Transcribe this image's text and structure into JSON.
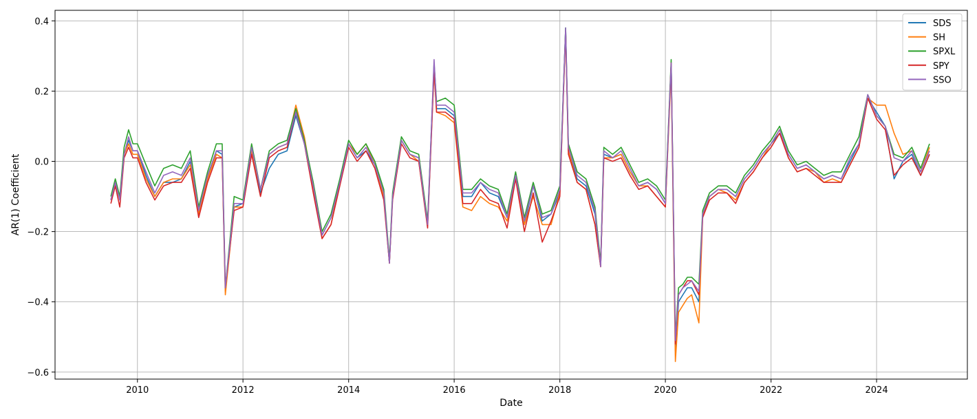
{
  "chart_data": {
    "type": "line",
    "title": "",
    "xlabel": "Date",
    "ylabel": "AR(1) Coefficient",
    "xlim": [
      "2008-06-10",
      "2025-09-20"
    ],
    "ylim": [
      -0.62,
      0.43
    ],
    "x_ticks": [
      "2010",
      "2012",
      "2014",
      "2016",
      "2018",
      "2020",
      "2022",
      "2024"
    ],
    "y_ticks": [
      -0.6,
      -0.4,
      -0.2,
      0.0,
      0.2,
      0.4
    ],
    "y_tick_labels": [
      "−0.6",
      "−0.4",
      "−0.2",
      "0.0",
      "0.2",
      "0.4"
    ],
    "grid": true,
    "legend_position": "top-right",
    "x": [
      "2009-07-01",
      "2009-08-01",
      "2009-09-01",
      "2009-10-01",
      "2009-11-01",
      "2009-12-01",
      "2010-01-01",
      "2010-03-01",
      "2010-05-01",
      "2010-07-01",
      "2010-09-01",
      "2010-11-01",
      "2011-01-01",
      "2011-03-01",
      "2011-05-01",
      "2011-07-01",
      "2011-08-10",
      "2011-09-01",
      "2011-11-01",
      "2012-01-01",
      "2012-03-01",
      "2012-05-01",
      "2012-07-01",
      "2012-09-01",
      "2012-11-01",
      "2013-01-01",
      "2013-03-01",
      "2013-05-01",
      "2013-07-01",
      "2013-09-01",
      "2013-11-01",
      "2014-01-01",
      "2014-03-01",
      "2014-05-01",
      "2014-07-01",
      "2014-09-01",
      "2014-10-10",
      "2014-11-01",
      "2015-01-01",
      "2015-03-01",
      "2015-05-01",
      "2015-07-01",
      "2015-08-15",
      "2015-09-01",
      "2015-11-01",
      "2016-01-01",
      "2016-03-01",
      "2016-05-01",
      "2016-07-01",
      "2016-09-01",
      "2016-11-01",
      "2017-01-01",
      "2017-03-01",
      "2017-05-01",
      "2017-07-01",
      "2017-09-01",
      "2017-11-01",
      "2018-01-01",
      "2018-02-10",
      "2018-03-01",
      "2018-05-01",
      "2018-07-01",
      "2018-09-01",
      "2018-10-10",
      "2018-11-01",
      "2019-01-01",
      "2019-03-01",
      "2019-05-01",
      "2019-07-01",
      "2019-09-01",
      "2019-11-01",
      "2020-01-01",
      "2020-02-10",
      "2020-03-10",
      "2020-04-01",
      "2020-05-01",
      "2020-06-01",
      "2020-07-01",
      "2020-08-20",
      "2020-09-15",
      "2020-11-01",
      "2021-01-01",
      "2021-03-01",
      "2021-05-01",
      "2021-07-01",
      "2021-09-01",
      "2021-11-01",
      "2022-01-01",
      "2022-03-01",
      "2022-05-01",
      "2022-07-01",
      "2022-09-01",
      "2022-11-01",
      "2023-01-01",
      "2023-03-01",
      "2023-05-01",
      "2023-07-01",
      "2023-09-01",
      "2023-11-01",
      "2024-01-01",
      "2024-03-01",
      "2024-05-01",
      "2024-07-01",
      "2024-09-01",
      "2024-11-01",
      "2025-01-01"
    ],
    "series": [
      {
        "name": "SDS",
        "color": "#1f77b4",
        "values": [
          -0.11,
          -0.06,
          -0.11,
          0.02,
          0.06,
          0.03,
          0.03,
          -0.04,
          -0.1,
          -0.06,
          -0.06,
          -0.05,
          0.0,
          -0.15,
          -0.05,
          0.03,
          0.02,
          -0.37,
          -0.13,
          -0.12,
          0.03,
          -0.09,
          -0.02,
          0.02,
          0.03,
          0.13,
          0.05,
          -0.08,
          -0.21,
          -0.16,
          -0.06,
          0.05,
          0.01,
          0.03,
          -0.01,
          -0.09,
          -0.29,
          -0.1,
          0.06,
          0.02,
          0.01,
          -0.18,
          0.27,
          0.15,
          0.15,
          0.13,
          -0.1,
          -0.1,
          -0.06,
          -0.09,
          -0.1,
          -0.16,
          -0.04,
          -0.18,
          -0.07,
          -0.17,
          -0.15,
          -0.09,
          0.38,
          0.03,
          -0.05,
          -0.07,
          -0.15,
          -0.3,
          0.02,
          0.01,
          0.02,
          -0.03,
          -0.07,
          -0.06,
          -0.08,
          -0.12,
          0.28,
          -0.54,
          -0.4,
          -0.38,
          -0.36,
          -0.36,
          -0.4,
          -0.15,
          -0.1,
          -0.08,
          -0.08,
          -0.1,
          -0.05,
          -0.02,
          0.02,
          0.05,
          0.08,
          0.02,
          -0.02,
          -0.01,
          -0.03,
          -0.05,
          -0.04,
          -0.05,
          0.0,
          0.05,
          0.18,
          0.14,
          0.1,
          -0.05,
          0.0,
          0.02,
          -0.04,
          0.02
        ]
      },
      {
        "name": "SH",
        "color": "#ff7f0e",
        "values": [
          -0.11,
          -0.06,
          -0.11,
          0.02,
          0.05,
          0.02,
          0.02,
          -0.05,
          -0.1,
          -0.06,
          -0.05,
          -0.05,
          -0.01,
          -0.15,
          -0.05,
          0.02,
          0.01,
          -0.38,
          -0.13,
          -0.13,
          0.03,
          -0.08,
          0.02,
          0.04,
          0.05,
          0.16,
          0.07,
          -0.08,
          -0.22,
          -0.18,
          -0.06,
          0.05,
          0.02,
          0.05,
          -0.01,
          -0.1,
          -0.29,
          -0.1,
          0.06,
          0.02,
          0.0,
          -0.18,
          0.26,
          0.14,
          0.13,
          0.11,
          -0.13,
          -0.14,
          -0.1,
          -0.12,
          -0.13,
          -0.17,
          -0.04,
          -0.18,
          -0.1,
          -0.18,
          -0.18,
          -0.09,
          0.37,
          0.03,
          -0.06,
          -0.08,
          -0.18,
          -0.3,
          0.01,
          0.01,
          0.02,
          -0.03,
          -0.07,
          -0.07,
          -0.1,
          -0.13,
          0.26,
          -0.57,
          -0.43,
          -0.41,
          -0.39,
          -0.38,
          -0.46,
          -0.16,
          -0.1,
          -0.08,
          -0.09,
          -0.11,
          -0.06,
          -0.03,
          0.01,
          0.05,
          0.09,
          0.01,
          -0.03,
          -0.02,
          -0.03,
          -0.06,
          -0.05,
          -0.06,
          -0.01,
          0.04,
          0.18,
          0.16,
          0.16,
          0.08,
          0.02,
          0.03,
          -0.03,
          0.04
        ]
      },
      {
        "name": "SPXL",
        "color": "#2ca02c",
        "values": [
          -0.1,
          -0.05,
          -0.1,
          0.04,
          0.09,
          0.05,
          0.05,
          -0.01,
          -0.07,
          -0.02,
          -0.01,
          -0.02,
          0.03,
          -0.13,
          -0.03,
          0.05,
          0.05,
          -0.36,
          -0.1,
          -0.11,
          0.05,
          -0.08,
          0.03,
          0.05,
          0.06,
          0.15,
          0.06,
          -0.06,
          -0.2,
          -0.15,
          -0.05,
          0.06,
          0.02,
          0.05,
          0.0,
          -0.08,
          -0.28,
          -0.09,
          0.07,
          0.03,
          0.02,
          -0.17,
          0.28,
          0.17,
          0.18,
          0.16,
          -0.08,
          -0.08,
          -0.05,
          -0.07,
          -0.08,
          -0.15,
          -0.03,
          -0.16,
          -0.06,
          -0.15,
          -0.14,
          -0.07,
          0.38,
          0.05,
          -0.03,
          -0.05,
          -0.13,
          -0.29,
          0.04,
          0.02,
          0.04,
          -0.01,
          -0.06,
          -0.05,
          -0.07,
          -0.11,
          0.29,
          -0.5,
          -0.36,
          -0.35,
          -0.33,
          -0.33,
          -0.35,
          -0.14,
          -0.09,
          -0.07,
          -0.07,
          -0.09,
          -0.04,
          -0.01,
          0.03,
          0.06,
          0.1,
          0.03,
          -0.01,
          0.0,
          -0.02,
          -0.04,
          -0.03,
          -0.03,
          0.02,
          0.07,
          0.19,
          0.13,
          0.1,
          0.02,
          0.01,
          0.04,
          -0.02,
          0.05
        ]
      },
      {
        "name": "SPY",
        "color": "#d62728",
        "values": [
          -0.12,
          -0.07,
          -0.13,
          0.01,
          0.04,
          0.01,
          0.01,
          -0.06,
          -0.11,
          -0.07,
          -0.06,
          -0.06,
          -0.02,
          -0.16,
          -0.06,
          0.01,
          0.01,
          -0.36,
          -0.14,
          -0.13,
          0.02,
          -0.1,
          0.01,
          0.03,
          0.04,
          0.14,
          0.05,
          -0.09,
          -0.22,
          -0.18,
          -0.07,
          0.04,
          0.0,
          0.03,
          -0.02,
          -0.11,
          -0.29,
          -0.11,
          0.05,
          0.01,
          0.0,
          -0.19,
          0.26,
          0.14,
          0.14,
          0.12,
          -0.12,
          -0.12,
          -0.08,
          -0.11,
          -0.12,
          -0.19,
          -0.05,
          -0.2,
          -0.09,
          -0.23,
          -0.17,
          -0.1,
          0.37,
          0.02,
          -0.06,
          -0.08,
          -0.18,
          -0.3,
          0.01,
          0.0,
          0.01,
          -0.04,
          -0.08,
          -0.07,
          -0.1,
          -0.13,
          0.28,
          -0.52,
          -0.38,
          -0.36,
          -0.34,
          -0.34,
          -0.38,
          -0.16,
          -0.11,
          -0.09,
          -0.09,
          -0.12,
          -0.06,
          -0.03,
          0.01,
          0.04,
          0.08,
          0.01,
          -0.03,
          -0.02,
          -0.04,
          -0.06,
          -0.06,
          -0.06,
          -0.01,
          0.04,
          0.18,
          0.12,
          0.09,
          -0.04,
          -0.01,
          0.01,
          -0.04,
          0.02
        ]
      },
      {
        "name": "SSO",
        "color": "#9467bd",
        "values": [
          -0.11,
          -0.06,
          -0.11,
          0.02,
          0.07,
          0.03,
          0.03,
          -0.03,
          -0.09,
          -0.04,
          -0.03,
          -0.04,
          0.01,
          -0.14,
          -0.04,
          0.03,
          0.03,
          -0.36,
          -0.12,
          -0.12,
          0.04,
          -0.08,
          0.02,
          0.04,
          0.05,
          0.14,
          0.05,
          -0.07,
          -0.21,
          -0.16,
          -0.06,
          0.05,
          0.01,
          0.04,
          -0.01,
          -0.09,
          -0.29,
          -0.1,
          0.06,
          0.02,
          0.01,
          -0.18,
          0.29,
          0.16,
          0.16,
          0.14,
          -0.09,
          -0.09,
          -0.06,
          -0.08,
          -0.09,
          -0.16,
          -0.04,
          -0.17,
          -0.07,
          -0.16,
          -0.15,
          -0.08,
          0.38,
          0.04,
          -0.04,
          -0.06,
          -0.14,
          -0.3,
          0.03,
          0.01,
          0.03,
          -0.02,
          -0.07,
          -0.06,
          -0.08,
          -0.12,
          0.28,
          -0.51,
          -0.38,
          -0.36,
          -0.35,
          -0.34,
          -0.37,
          -0.15,
          -0.1,
          -0.08,
          -0.08,
          -0.1,
          -0.05,
          -0.02,
          0.02,
          0.05,
          0.09,
          0.02,
          -0.02,
          -0.01,
          -0.03,
          -0.05,
          -0.04,
          -0.05,
          0.01,
          0.05,
          0.19,
          0.13,
          0.1,
          0.01,
          0.0,
          0.03,
          -0.03,
          0.03
        ]
      }
    ]
  }
}
